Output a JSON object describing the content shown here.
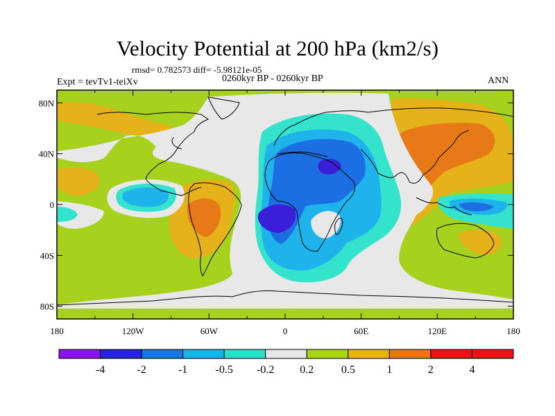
{
  "figure": {
    "title": "Velocity Potential at 200 hPa (km2/s)",
    "stats_line": "rmsd= 0.782573 diff= -5.98121e-05",
    "period_line": "0260kyr BP - 0260kyr BP",
    "experiment_line": "Expt = tevTv1-teiXv",
    "season": "ANN"
  },
  "map": {
    "projection": "cylindrical equidistant",
    "lat_labels": [
      "80N",
      "40N",
      "0",
      "40S",
      "80S"
    ],
    "lon_labels": [
      "180",
      "120W",
      "60W",
      "0",
      "60E",
      "120E",
      "180"
    ],
    "lat_range": [
      -90,
      90
    ],
    "lon_range": [
      -180,
      180
    ]
  },
  "colorbar": {
    "levels": [
      "-4",
      "-2",
      "-1",
      "-0.5",
      "-0.2",
      "0.2",
      "0.5",
      "1",
      "2",
      "4"
    ],
    "colors": [
      "#8a14e6",
      "#2424d8",
      "#1478e0",
      "#14b4ea",
      "#28e0c8",
      "#e6e6e6",
      "#a8d414",
      "#e6b414",
      "#e67814",
      "#e61414",
      "#e61414"
    ]
  },
  "palette": {
    "neg4": "#3a1ed8",
    "neg2": "#1b6fe3",
    "neg1": "#1eb4eb",
    "neg05": "#34e3cc",
    "zero": "#e8e8e8",
    "pos02": "#a6d21d",
    "pos05": "#e6b21a",
    "pos1": "#e77a16"
  }
}
